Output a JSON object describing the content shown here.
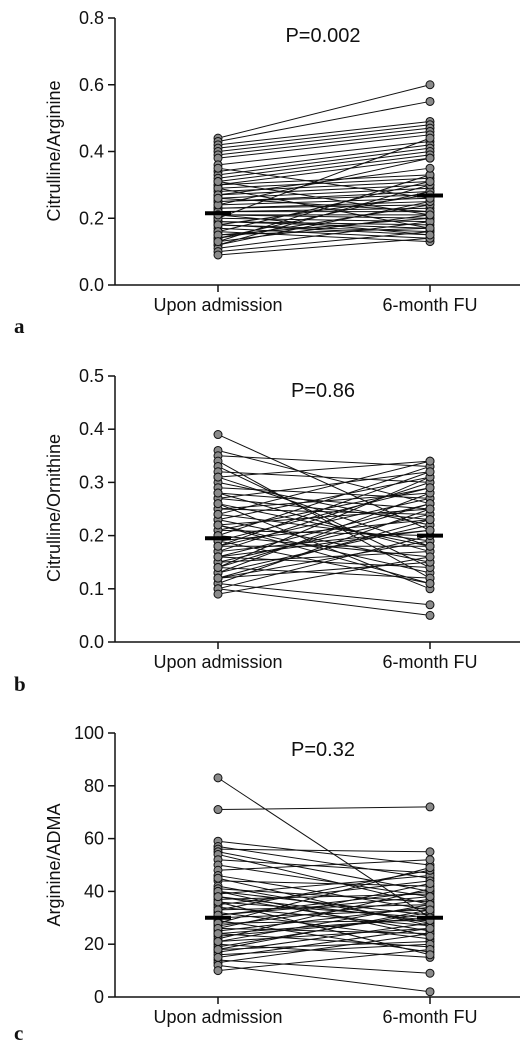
{
  "chart_data": [
    {
      "type": "scatter",
      "panel_label": "a",
      "ylabel": "Citrulline/Arginine",
      "annotation": "P=0.002",
      "categories": [
        "Upon admission",
        "6-month FU"
      ],
      "ylim": [
        0.0,
        0.8
      ],
      "yticks": [
        "0.0",
        "0.2",
        "0.4",
        "0.6",
        "0.8"
      ],
      "median": [
        0.215,
        0.268
      ],
      "pairs": [
        [
          0.44,
          0.6
        ],
        [
          0.43,
          0.55
        ],
        [
          0.42,
          0.49
        ],
        [
          0.41,
          0.48
        ],
        [
          0.4,
          0.47
        ],
        [
          0.39,
          0.46
        ],
        [
          0.38,
          0.45
        ],
        [
          0.36,
          0.43
        ],
        [
          0.34,
          0.42
        ],
        [
          0.33,
          0.41
        ],
        [
          0.32,
          0.4
        ],
        [
          0.31,
          0.39
        ],
        [
          0.3,
          0.38
        ],
        [
          0.3,
          0.33
        ],
        [
          0.29,
          0.32
        ],
        [
          0.28,
          0.31
        ],
        [
          0.27,
          0.3
        ],
        [
          0.26,
          0.29
        ],
        [
          0.25,
          0.28
        ],
        [
          0.25,
          0.27
        ],
        [
          0.24,
          0.26
        ],
        [
          0.23,
          0.25
        ],
        [
          0.23,
          0.24
        ],
        [
          0.22,
          0.23
        ],
        [
          0.22,
          0.22
        ],
        [
          0.21,
          0.21
        ],
        [
          0.21,
          0.2
        ],
        [
          0.2,
          0.19
        ],
        [
          0.19,
          0.18
        ],
        [
          0.19,
          0.17
        ],
        [
          0.18,
          0.16
        ],
        [
          0.18,
          0.15
        ],
        [
          0.17,
          0.14
        ],
        [
          0.16,
          0.13
        ],
        [
          0.15,
          0.2
        ],
        [
          0.14,
          0.24
        ],
        [
          0.14,
          0.28
        ],
        [
          0.13,
          0.33
        ],
        [
          0.12,
          0.3
        ],
        [
          0.12,
          0.25
        ],
        [
          0.11,
          0.19
        ],
        [
          0.1,
          0.16
        ],
        [
          0.09,
          0.14
        ],
        [
          0.29,
          0.17
        ],
        [
          0.31,
          0.21
        ],
        [
          0.27,
          0.35
        ],
        [
          0.2,
          0.44
        ],
        [
          0.24,
          0.38
        ],
        [
          0.18,
          0.27
        ],
        [
          0.16,
          0.31
        ],
        [
          0.26,
          0.22
        ],
        [
          0.15,
          0.17
        ],
        [
          0.13,
          0.21
        ],
        [
          0.35,
          0.26
        ],
        [
          0.21,
          0.15
        ]
      ]
    },
    {
      "type": "scatter",
      "panel_label": "b",
      "ylabel": "Citrulline/Ornithine",
      "annotation": "P=0.86",
      "categories": [
        "Upon admission",
        "6-month FU"
      ],
      "ylim": [
        0.0,
        0.5
      ],
      "yticks": [
        "0.0",
        "0.1",
        "0.2",
        "0.3",
        "0.4",
        "0.5"
      ],
      "median": [
        0.195,
        0.2
      ],
      "pairs": [
        [
          0.39,
          0.21
        ],
        [
          0.36,
          0.26
        ],
        [
          0.35,
          0.33
        ],
        [
          0.34,
          0.12
        ],
        [
          0.33,
          0.14
        ],
        [
          0.32,
          0.3
        ],
        [
          0.31,
          0.34
        ],
        [
          0.3,
          0.22
        ],
        [
          0.29,
          0.27
        ],
        [
          0.28,
          0.17
        ],
        [
          0.27,
          0.32
        ],
        [
          0.26,
          0.1
        ],
        [
          0.25,
          0.24
        ],
        [
          0.25,
          0.28
        ],
        [
          0.24,
          0.19
        ],
        [
          0.23,
          0.31
        ],
        [
          0.23,
          0.15
        ],
        [
          0.22,
          0.25
        ],
        [
          0.22,
          0.13
        ],
        [
          0.21,
          0.29
        ],
        [
          0.21,
          0.2
        ],
        [
          0.2,
          0.33
        ],
        [
          0.2,
          0.16
        ],
        [
          0.19,
          0.23
        ],
        [
          0.19,
          0.11
        ],
        [
          0.18,
          0.27
        ],
        [
          0.18,
          0.18
        ],
        [
          0.17,
          0.3
        ],
        [
          0.17,
          0.21
        ],
        [
          0.16,
          0.14
        ],
        [
          0.16,
          0.26
        ],
        [
          0.15,
          0.24
        ],
        [
          0.15,
          0.17
        ],
        [
          0.14,
          0.31
        ],
        [
          0.14,
          0.12
        ],
        [
          0.13,
          0.22
        ],
        [
          0.13,
          0.28
        ],
        [
          0.12,
          0.19
        ],
        [
          0.12,
          0.15
        ],
        [
          0.11,
          0.25
        ],
        [
          0.11,
          0.07
        ],
        [
          0.1,
          0.2
        ],
        [
          0.1,
          0.05
        ],
        [
          0.09,
          0.16
        ],
        [
          0.27,
          0.23
        ],
        [
          0.24,
          0.34
        ],
        [
          0.31,
          0.18
        ],
        [
          0.19,
          0.29
        ],
        [
          0.16,
          0.21
        ],
        [
          0.14,
          0.26
        ],
        [
          0.28,
          0.25
        ],
        [
          0.26,
          0.18
        ],
        [
          0.22,
          0.11
        ],
        [
          0.18,
          0.32
        ],
        [
          0.12,
          0.23
        ]
      ]
    },
    {
      "type": "scatter",
      "panel_label": "c",
      "ylabel": "Arginine/ADMA",
      "annotation": "P=0.32",
      "categories": [
        "Upon admission",
        "6-month FU"
      ],
      "ylim": [
        0,
        100
      ],
      "yticks": [
        "0",
        "20",
        "40",
        "60",
        "80",
        "100"
      ],
      "median": [
        30,
        30
      ],
      "pairs": [
        [
          83,
          30
        ],
        [
          71,
          72
        ],
        [
          59,
          50
        ],
        [
          57,
          45
        ],
        [
          56,
          55
        ],
        [
          55,
          40
        ],
        [
          54,
          35
        ],
        [
          52,
          47
        ],
        [
          50,
          38
        ],
        [
          48,
          52
        ],
        [
          46,
          33
        ],
        [
          44,
          42
        ],
        [
          42,
          28
        ],
        [
          41,
          36
        ],
        [
          40,
          31
        ],
        [
          39,
          46
        ],
        [
          38,
          25
        ],
        [
          37,
          39
        ],
        [
          36,
          30
        ],
        [
          35,
          44
        ],
        [
          34,
          27
        ],
        [
          33,
          35
        ],
        [
          32,
          22
        ],
        [
          31,
          40
        ],
        [
          30,
          33
        ],
        [
          29,
          17
        ],
        [
          28,
          29
        ],
        [
          27,
          37
        ],
        [
          26,
          24
        ],
        [
          25,
          34
        ],
        [
          24,
          19
        ],
        [
          23,
          30
        ],
        [
          22,
          41
        ],
        [
          21,
          26
        ],
        [
          20,
          15
        ],
        [
          19,
          32
        ],
        [
          18,
          21
        ],
        [
          17,
          28
        ],
        [
          16,
          20
        ],
        [
          14,
          9
        ],
        [
          13,
          24
        ],
        [
          12,
          2
        ],
        [
          10,
          18
        ],
        [
          33,
          48
        ],
        [
          45,
          27
        ],
        [
          28,
          49
        ],
        [
          36,
          16
        ],
        [
          26,
          43
        ],
        [
          21,
          35
        ],
        [
          40,
          23
        ],
        [
          31,
          38
        ],
        [
          18,
          33
        ],
        [
          24,
          30
        ],
        [
          15,
          26
        ],
        [
          38,
          29
        ]
      ]
    }
  ]
}
